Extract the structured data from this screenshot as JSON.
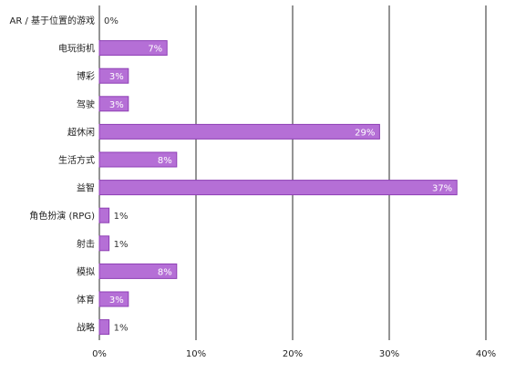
{
  "chart_data": {
    "type": "bar",
    "orientation": "horizontal",
    "categories": [
      "AR / 基于位置的游戏",
      "电玩街机",
      "博彩",
      "驾驶",
      "超休闲",
      "生活方式",
      "益智",
      "角色扮演 (RPG)",
      "射击",
      "模拟",
      "体育",
      "战略"
    ],
    "values": [
      0,
      7,
      3,
      3,
      29,
      8,
      37,
      1,
      1,
      8,
      3,
      1
    ],
    "value_labels": [
      "0%",
      "7%",
      "3%",
      "3%",
      "29%",
      "8%",
      "37%",
      "1%",
      "1%",
      "8%",
      "3%",
      "1%"
    ],
    "xlim": [
      0,
      40
    ],
    "xticks": [
      0,
      10,
      20,
      30,
      40
    ],
    "xtick_labels": [
      "0%",
      "10%",
      "20%",
      "30%",
      "40%"
    ],
    "grid": "vertical",
    "bar_color": "#b56fd6",
    "bar_border_color": "#8e3fb5",
    "title": "",
    "xlabel": "",
    "ylabel": ""
  }
}
